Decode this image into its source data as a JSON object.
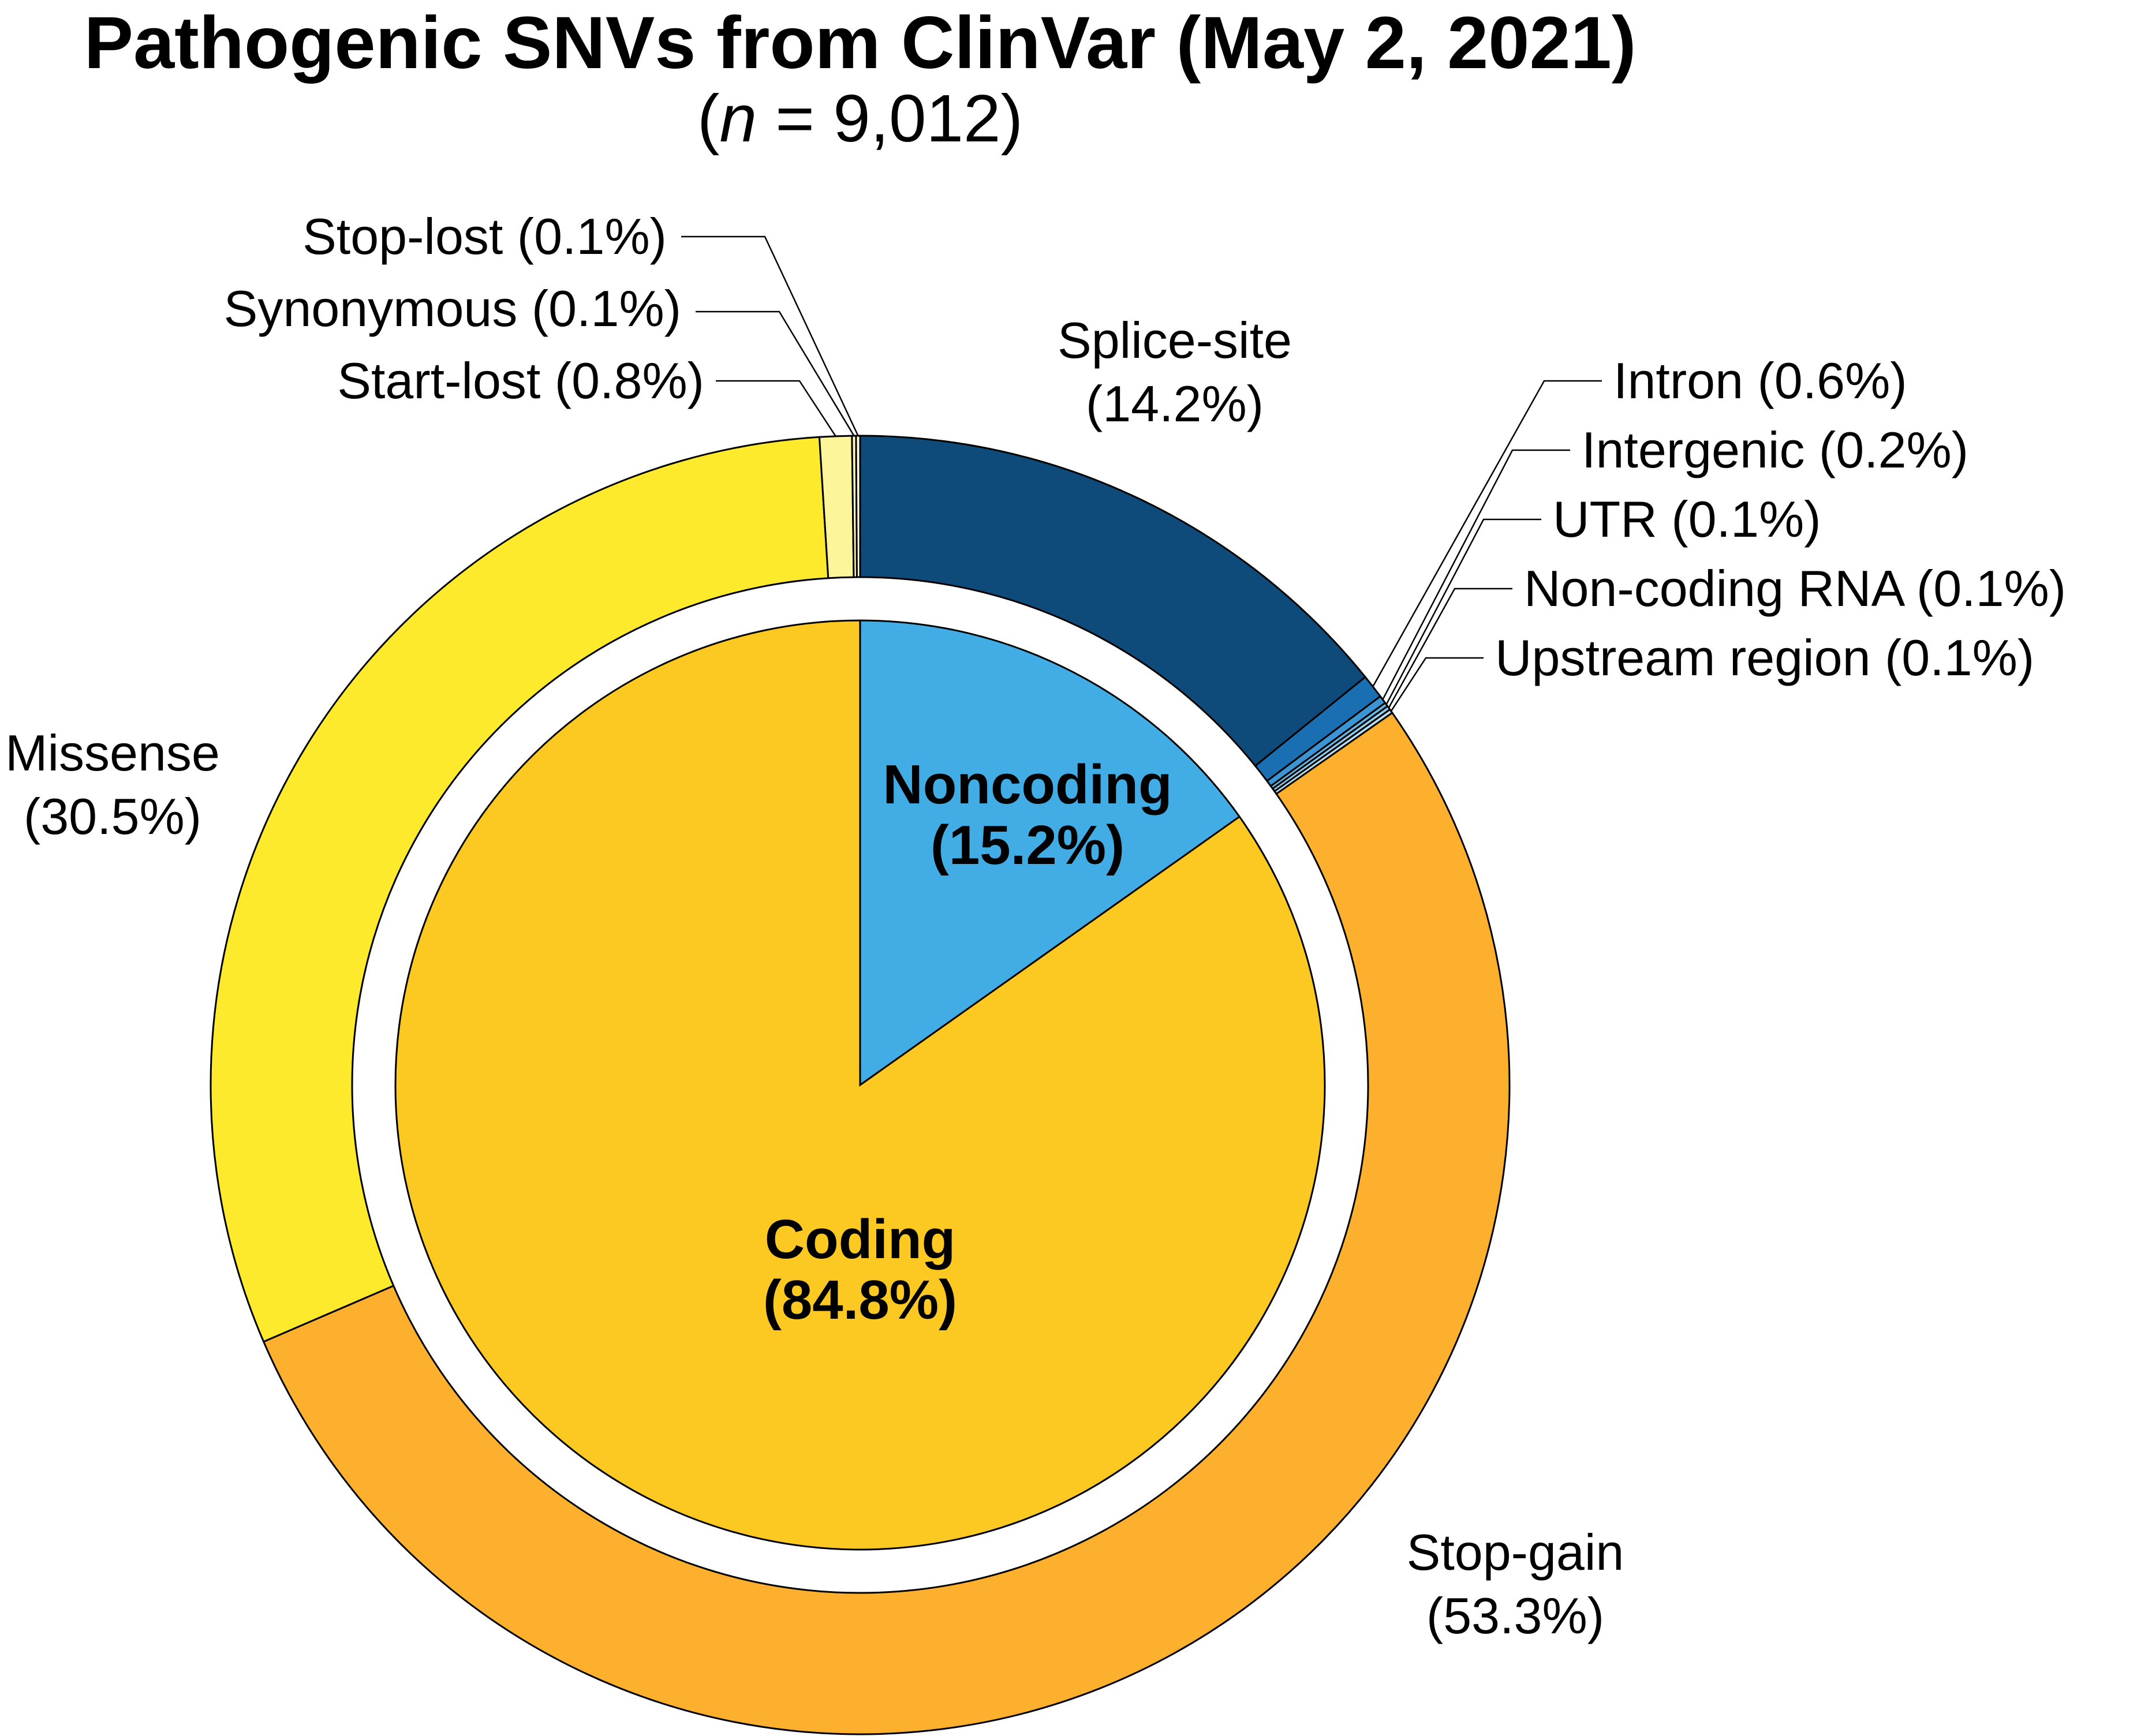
{
  "chart_data": {
    "type": "pie",
    "title": "Pathogenic SNVs from ClinVar (May 2, 2021)",
    "subtitle": {
      "open": "(",
      "italic": "n",
      "rest": " = 9,012)"
    },
    "inner": [
      {
        "name": "Noncoding",
        "percent": 15.2,
        "label": "(15.2%)",
        "color": "#42ace4"
      },
      {
        "name": "Coding",
        "percent": 84.8,
        "label": "(84.8%)",
        "color": "#fcc822"
      }
    ],
    "outer": [
      {
        "name": "Splice-site",
        "percent": 14.2,
        "label": "(14.2%)",
        "color": "#0e4a7a"
      },
      {
        "name": "Intron",
        "percent": 0.6,
        "label": "Intron (0.6%)",
        "color": "#1a6fb2"
      },
      {
        "name": "Intergenic",
        "percent": 0.2,
        "label": "Intergenic (0.2%)",
        "color": "#3b95d4"
      },
      {
        "name": "UTR",
        "percent": 0.1,
        "label": "UTR (0.1%)",
        "color": "#66b6e6"
      },
      {
        "name": "Non-coding RNA",
        "percent": 0.1,
        "label": "Non-coding RNA (0.1%)",
        "color": "#8fcdee"
      },
      {
        "name": "Upstream region",
        "percent": 0.1,
        "label": "Upstream region (0.1%)",
        "color": "#b8e0f5"
      },
      {
        "name": "Stop-gain",
        "percent": 53.3,
        "label": "(53.3%)",
        "color": "#fcb02e"
      },
      {
        "name": "Missense",
        "percent": 30.5,
        "label": "(30.5%)",
        "color": "#fdea2d"
      },
      {
        "name": "Start-lost",
        "percent": 0.8,
        "label": "Start-lost (0.8%)",
        "color": "#fdf59a"
      },
      {
        "name": "Synonymous",
        "percent": 0.1,
        "label": "Synonymous (0.1%)",
        "color": "#fef8c0"
      },
      {
        "name": "Stop-lost",
        "percent": 0.1,
        "label": "Stop-lost (0.1%)",
        "color": "#fffbe0"
      }
    ]
  }
}
